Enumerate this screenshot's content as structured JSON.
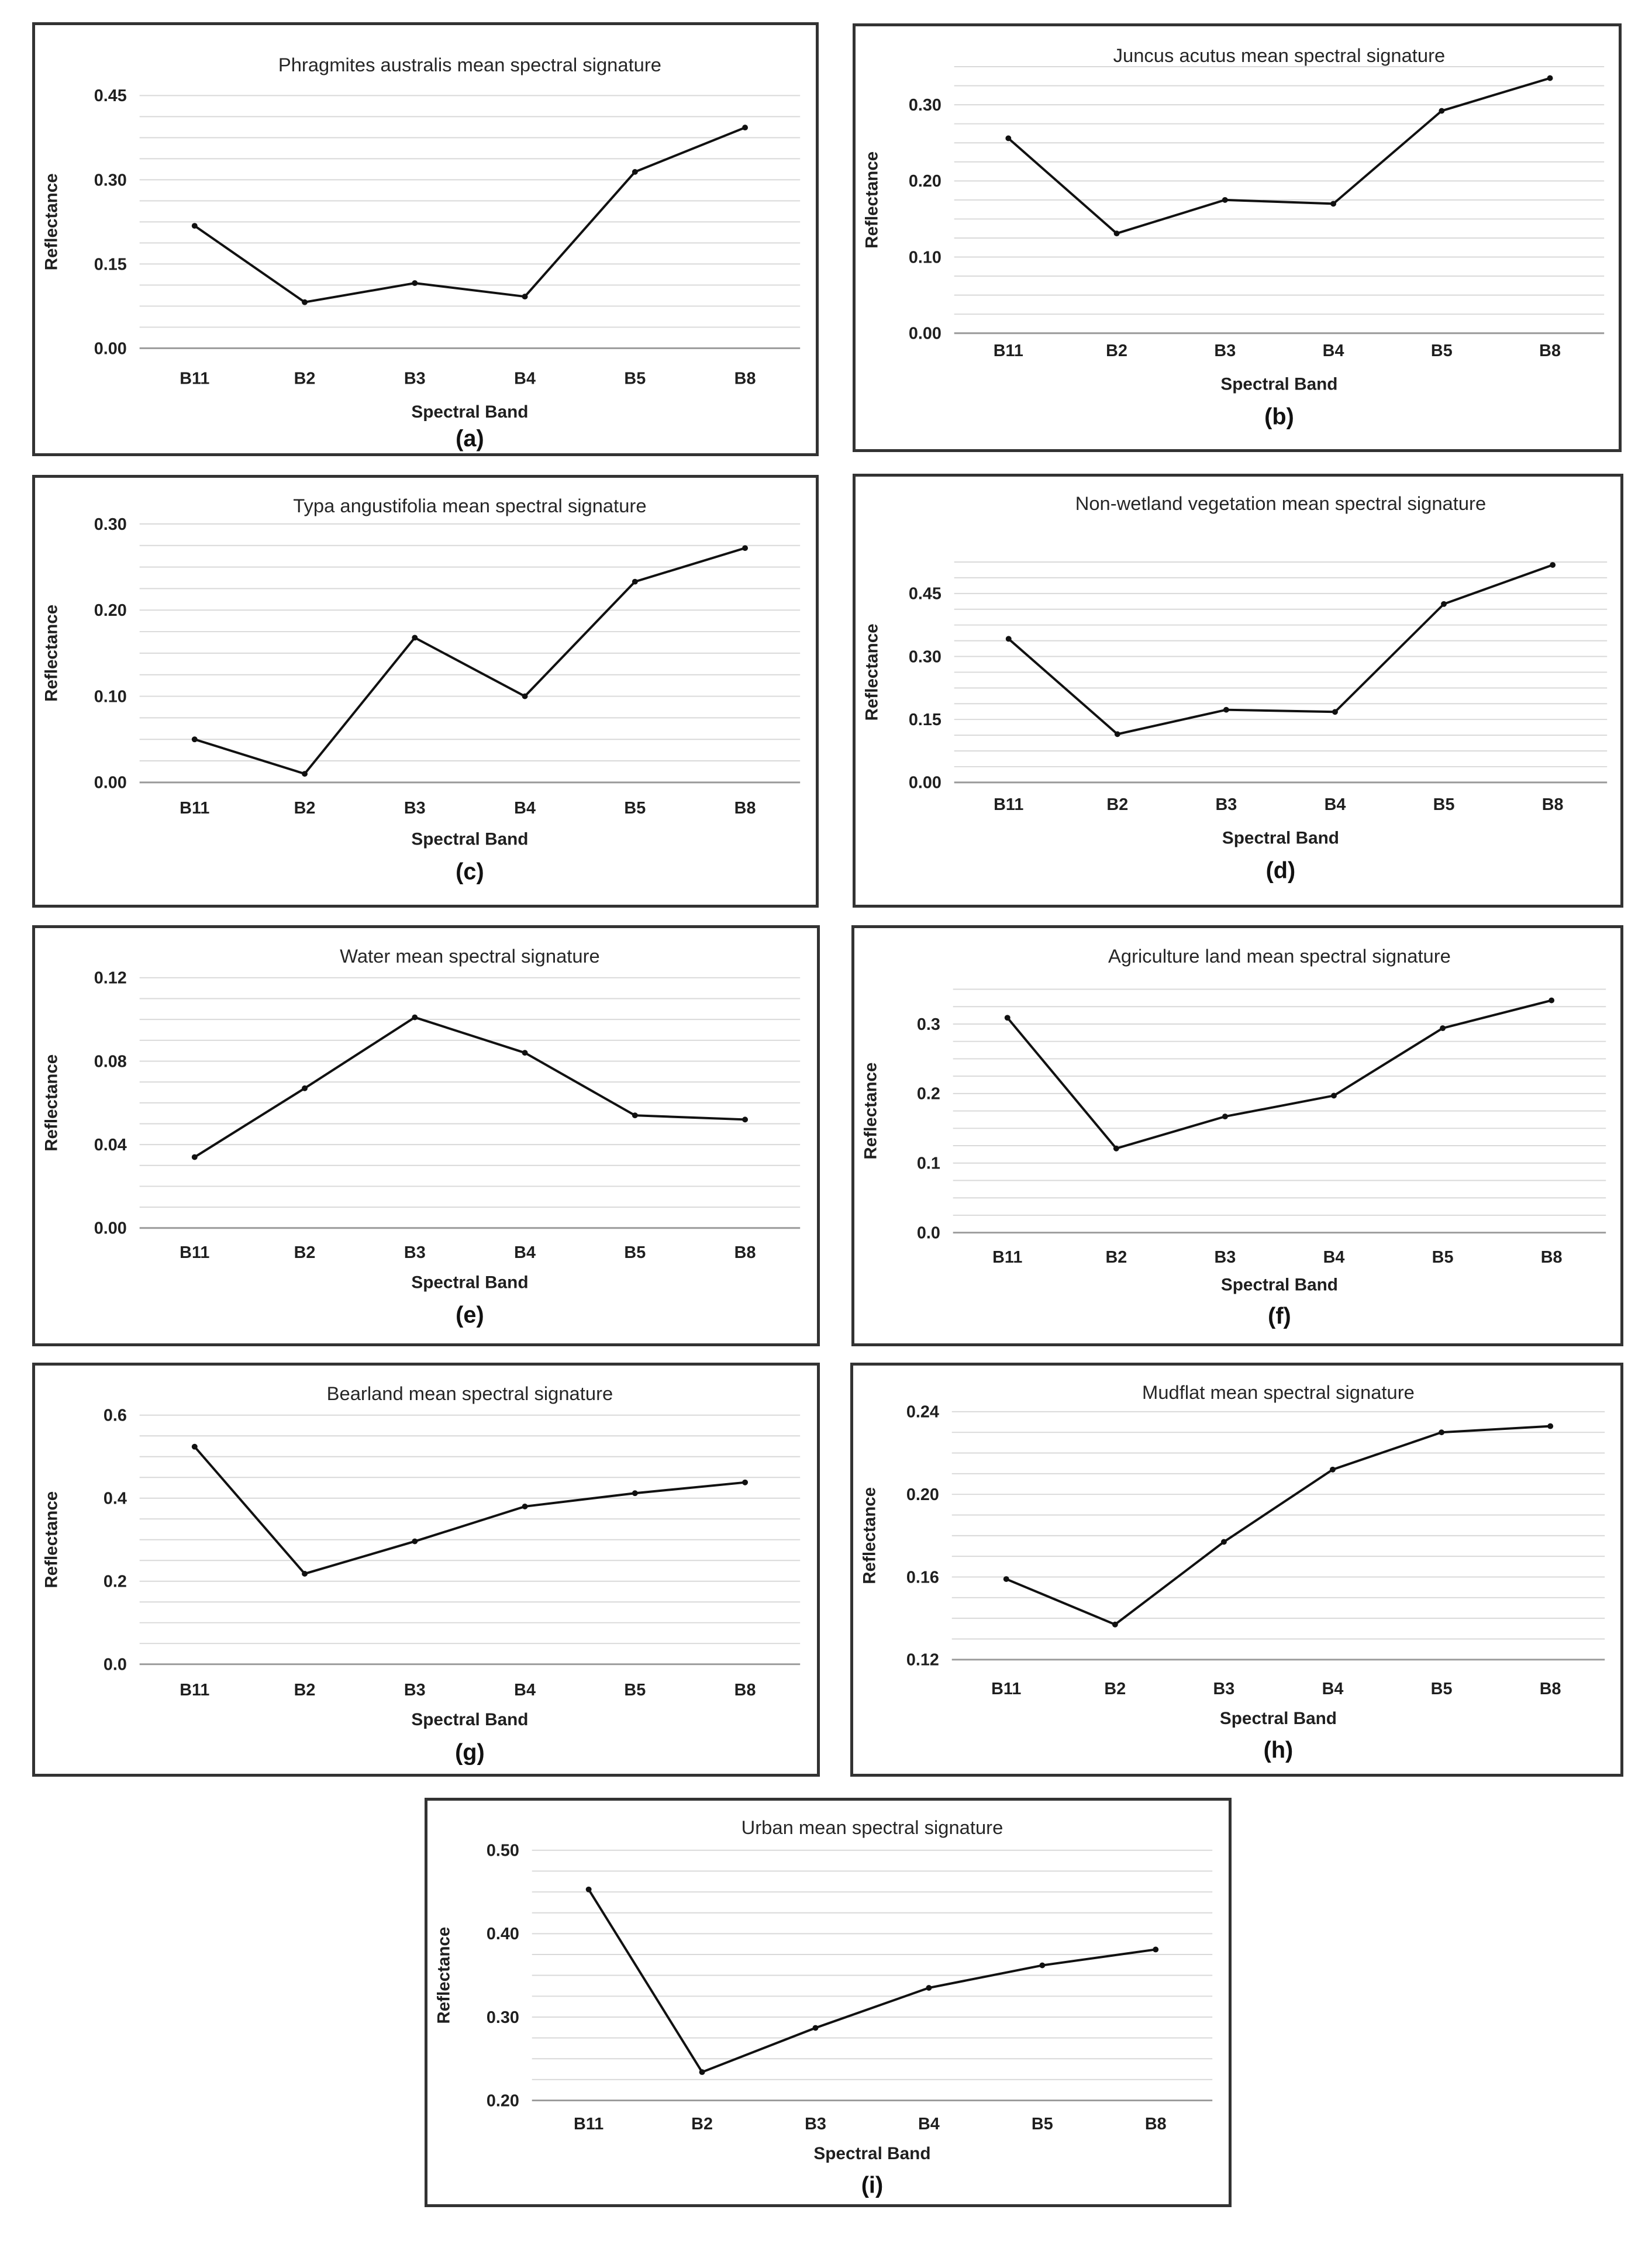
{
  "chart_data": [
    {
      "type": "line",
      "panel": "(a)",
      "title": "Phragmites australis mean spectral signature",
      "xlabel": "Spectral Band",
      "ylabel": "Reflectance",
      "categories": [
        "B11",
        "B2",
        "B3",
        "B4",
        "B5",
        "B8"
      ],
      "values": [
        0.218,
        0.082,
        0.116,
        0.092,
        0.314,
        0.393
      ],
      "yticks": [
        "0.00",
        "0.15",
        "0.30",
        "0.45"
      ],
      "ylim": [
        0,
        0.45
      ],
      "minor_step": 0.0375
    },
    {
      "type": "line",
      "panel": "(b)",
      "title": "Juncus acutus mean spectral signature",
      "xlabel": "Spectral Band",
      "ylabel": "Reflectance",
      "categories": [
        "B11",
        "B2",
        "B3",
        "B4",
        "B5",
        "B8"
      ],
      "values": [
        0.256,
        0.131,
        0.175,
        0.17,
        0.292,
        0.335
      ],
      "yticks": [
        "0.00",
        "0.10",
        "0.20",
        "0.30"
      ],
      "ylim": [
        0,
        0.35
      ],
      "minor_step": 0.025
    },
    {
      "type": "line",
      "panel": "(c)",
      "title": "Typa angustifolia mean spectral signature",
      "xlabel": "Spectral Band",
      "ylabel": "Reflectance",
      "categories": [
        "B11",
        "B2",
        "B3",
        "B4",
        "B5",
        "B8"
      ],
      "values": [
        0.05,
        0.01,
        0.168,
        0.1,
        0.233,
        0.272
      ],
      "yticks": [
        "0.00",
        "0.10",
        "0.20",
        "0.30"
      ],
      "ylim": [
        0,
        0.3
      ],
      "minor_step": 0.025
    },
    {
      "type": "line",
      "panel": "(d)",
      "title": "Non-wetland vegetation mean spectral signature",
      "xlabel": "Spectral Band",
      "ylabel": "Reflectance",
      "categories": [
        "B11",
        "B2",
        "B3",
        "B4",
        "B5",
        "B8"
      ],
      "values": [
        0.342,
        0.115,
        0.173,
        0.168,
        0.425,
        0.518
      ],
      "yticks": [
        "0.00",
        "0.15",
        "0.30",
        "0.45"
      ],
      "ylim": [
        0,
        0.525
      ],
      "minor_step": 0.0375
    },
    {
      "type": "line",
      "panel": "(e)",
      "title": "Water mean spectral signature",
      "xlabel": "Spectral Band",
      "ylabel": "Reflectance",
      "categories": [
        "B11",
        "B2",
        "B3",
        "B4",
        "B5",
        "B8"
      ],
      "values": [
        0.034,
        0.067,
        0.101,
        0.084,
        0.054,
        0.052
      ],
      "yticks": [
        "0.00",
        "0.04",
        "0.08",
        "0.12"
      ],
      "ylim": [
        0,
        0.12
      ],
      "minor_step": 0.01
    },
    {
      "type": "line",
      "panel": "(f)",
      "title": "Agriculture land mean spectral signature",
      "xlabel": "Spectral Band",
      "ylabel": "Reflectance",
      "categories": [
        "B11",
        "B2",
        "B3",
        "B4",
        "B5",
        "B8"
      ],
      "values": [
        0.309,
        0.121,
        0.167,
        0.197,
        0.294,
        0.334
      ],
      "yticks": [
        "0.0",
        "0.1",
        "0.2",
        "0.3"
      ],
      "ylim": [
        0,
        0.35
      ],
      "minor_step": 0.025
    },
    {
      "type": "line",
      "panel": "(g)",
      "title": "Bearland mean spectral signature",
      "xlabel": "Spectral Band",
      "ylabel": "Reflectance",
      "categories": [
        "B11",
        "B2",
        "B3",
        "B4",
        "B5",
        "B8"
      ],
      "values": [
        0.524,
        0.218,
        0.296,
        0.38,
        0.412,
        0.438
      ],
      "yticks": [
        "0.0",
        "0.2",
        "0.4",
        "0.6"
      ],
      "ylim": [
        0,
        0.6
      ],
      "minor_step": 0.05
    },
    {
      "type": "line",
      "panel": "(h)",
      "title": "Mudflat mean spectral signature",
      "xlabel": "Spectral Band",
      "ylabel": "Reflectance",
      "categories": [
        "B11",
        "B2",
        "B3",
        "B4",
        "B5",
        "B8"
      ],
      "values": [
        0.159,
        0.137,
        0.177,
        0.212,
        0.23,
        0.233
      ],
      "yticks": [
        "0.12",
        "0.16",
        "0.20",
        "0.24"
      ],
      "ylim": [
        0.12,
        0.24
      ],
      "minor_step": 0.01
    },
    {
      "type": "line",
      "panel": "(i)",
      "title": "Urban mean spectral signature",
      "xlabel": "Spectral Band",
      "ylabel": "Reflectance",
      "categories": [
        "B11",
        "B2",
        "B3",
        "B4",
        "B5",
        "B8"
      ],
      "values": [
        0.453,
        0.234,
        0.287,
        0.335,
        0.362,
        0.381
      ],
      "yticks": [
        "0.20",
        "0.30",
        "0.40",
        "0.50"
      ],
      "ylim": [
        0.2,
        0.5
      ],
      "minor_step": 0.025
    }
  ]
}
